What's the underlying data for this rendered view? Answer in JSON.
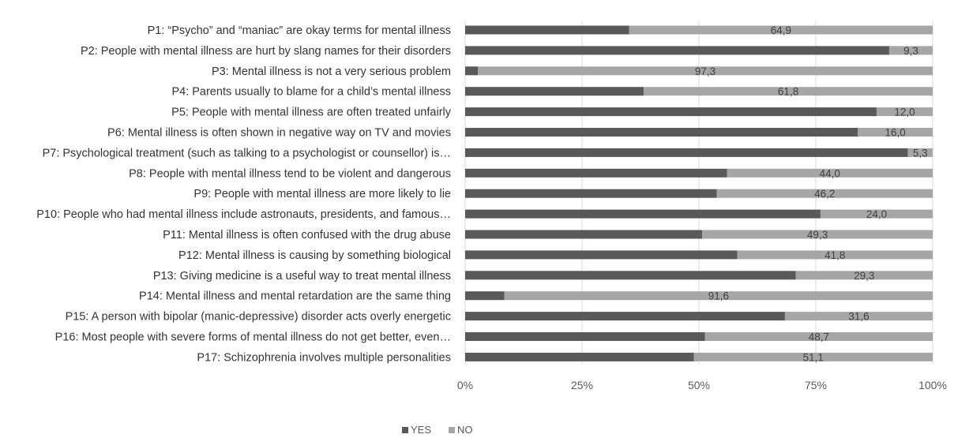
{
  "chart_data": {
    "type": "bar",
    "orientation": "horizontal",
    "stacked": "percent",
    "categories": [
      "P1: “Psycho” and “maniac” are okay terms for mental illness",
      "P2: People with mental illness are hurt by slang names for their disorders",
      "P3: Mental illness is not a very serious problem",
      "P4: Parents usually to blame for a child’s mental illness",
      "P5: People with mental illness are often treated unfairly",
      "P6: Mental illness is often shown in negative way on TV and movies",
      "P7: Psychological treatment (such as talking to a psychologist or counsellor) is…",
      "P8: People with mental illness tend to be violent and dangerous",
      "P9: People with mental illness are more likely to lie",
      "P10: People who had mental illness include astronauts, presidents, and famous…",
      "P11: Mental illness is often confused with the drug abuse",
      "P12: Mental illness is causing by something biological",
      "P13: Giving medicine is a useful way to treat mental illness",
      "P14: Mental illness and mental retardation are the same thing",
      "P15: A person with bipolar (manic-depressive) disorder acts overly energetic",
      "P16: Most people with severe forms of mental illness do not get better, even…",
      "P17: Schizophrenia involves multiple personalities"
    ],
    "series": [
      {
        "name": "YES",
        "color": "#595959",
        "values": [
          35.1,
          90.7,
          2.7,
          38.2,
          88.0,
          84.0,
          94.7,
          56.0,
          53.8,
          76.0,
          50.7,
          58.2,
          70.7,
          8.4,
          68.4,
          51.3,
          48.9
        ]
      },
      {
        "name": "NO",
        "color": "#a6a6a6",
        "values": [
          64.9,
          9.3,
          97.3,
          61.8,
          12.0,
          16.0,
          5.3,
          44.0,
          46.2,
          24.0,
          49.3,
          41.8,
          29.3,
          91.6,
          31.6,
          48.7,
          51.1
        ]
      }
    ],
    "data_labels": [
      "64,9",
      "9,3",
      "97,3",
      "61,8",
      "12,0",
      "16,0",
      "5,3",
      "44,0",
      "46,2",
      "24,0",
      "49,3",
      "41,8",
      "29,3",
      "91,6",
      "31,6",
      "48,7",
      "51,1"
    ],
    "x_ticks": [
      "0%",
      "25%",
      "50%",
      "75%",
      "100%"
    ],
    "xlim": [
      0,
      100
    ],
    "grid": true,
    "legend_position": "bottom",
    "title": "",
    "xlabel": "",
    "ylabel": ""
  }
}
